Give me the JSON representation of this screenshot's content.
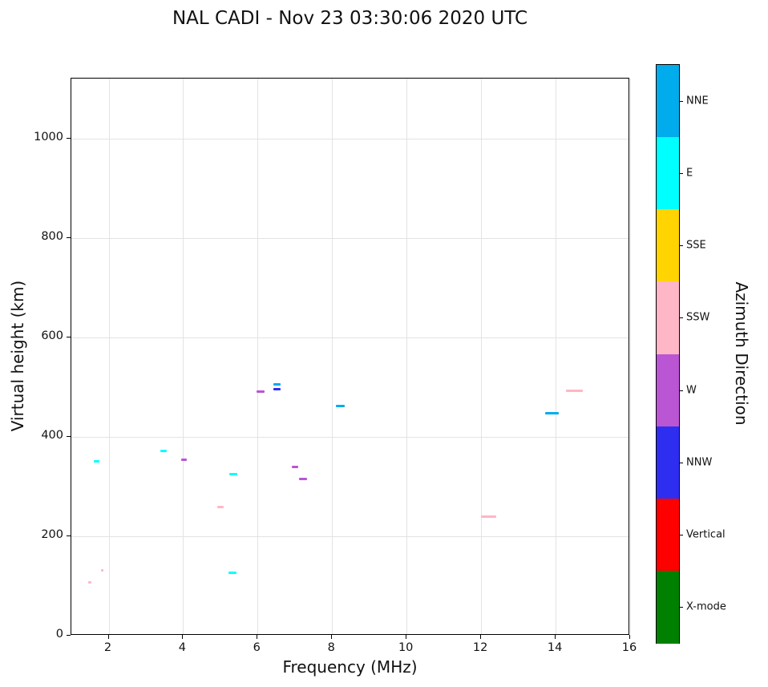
{
  "header": {
    "title": "NAL CADI - Nov 23 03:30:06 2020 UTC"
  },
  "chart_data": {
    "type": "scatter",
    "title": "NAL CADI - Nov 23 03:30:06 2020 UTC",
    "xlabel": "Frequency (MHz)",
    "ylabel": "Virtual height (km)",
    "colorbar_label": "Azimuth Direction",
    "xlim": [
      1,
      16
    ],
    "ylim": [
      0,
      1120
    ],
    "xticks": [
      2,
      4,
      6,
      8,
      10,
      12,
      14,
      16
    ],
    "yticks": [
      0,
      200,
      400,
      600,
      800,
      1000
    ],
    "grid": true,
    "marker": "horizontal-dash",
    "legend_position": "right-colorbar",
    "directions_top_to_bottom": [
      {
        "label": "NNE",
        "color": "#00ACEC"
      },
      {
        "label": "E",
        "color": "#00FFFF"
      },
      {
        "label": "SSE",
        "color": "#FFD400"
      },
      {
        "label": "SSW",
        "color": "#FFB6C6"
      },
      {
        "label": "W",
        "color": "#BA55D3"
      },
      {
        "label": "NNW",
        "color": "#2E2EF0"
      },
      {
        "label": "Vertical",
        "color": "#FF0000"
      },
      {
        "label": "X-mode",
        "color": "#008000"
      }
    ],
    "points": [
      {
        "x": 1.5,
        "y": 107,
        "dir": "SSW",
        "w": 0.08
      },
      {
        "x": 1.68,
        "y": 351,
        "dir": "E",
        "w": 0.14
      },
      {
        "x": 1.82,
        "y": 131,
        "dir": "SSW",
        "w": 0.07
      },
      {
        "x": 3.48,
        "y": 371,
        "dir": "E",
        "w": 0.18
      },
      {
        "x": 4.02,
        "y": 354,
        "dir": "W",
        "w": 0.14
      },
      {
        "x": 5.0,
        "y": 258,
        "dir": "SSW",
        "w": 0.18
      },
      {
        "x": 5.35,
        "y": 325,
        "dir": "E",
        "w": 0.22
      },
      {
        "x": 5.33,
        "y": 126,
        "dir": "E",
        "w": 0.22
      },
      {
        "x": 6.08,
        "y": 490,
        "dir": "W",
        "w": 0.22
      },
      {
        "x": 6.52,
        "y": 505,
        "dir": "NNE",
        "w": 0.18
      },
      {
        "x": 6.52,
        "y": 496,
        "dir": "NNW",
        "w": 0.18
      },
      {
        "x": 7.0,
        "y": 340,
        "dir": "W",
        "w": 0.18
      },
      {
        "x": 7.22,
        "y": 315,
        "dir": "W",
        "w": 0.2
      },
      {
        "x": 8.22,
        "y": 462,
        "dir": "NNE",
        "w": 0.24
      },
      {
        "x": 12.2,
        "y": 240,
        "dir": "SSW",
        "w": 0.42
      },
      {
        "x": 13.9,
        "y": 447,
        "dir": "NNE",
        "w": 0.36
      },
      {
        "x": 14.5,
        "y": 493,
        "dir": "SSW",
        "w": 0.45
      }
    ]
  }
}
